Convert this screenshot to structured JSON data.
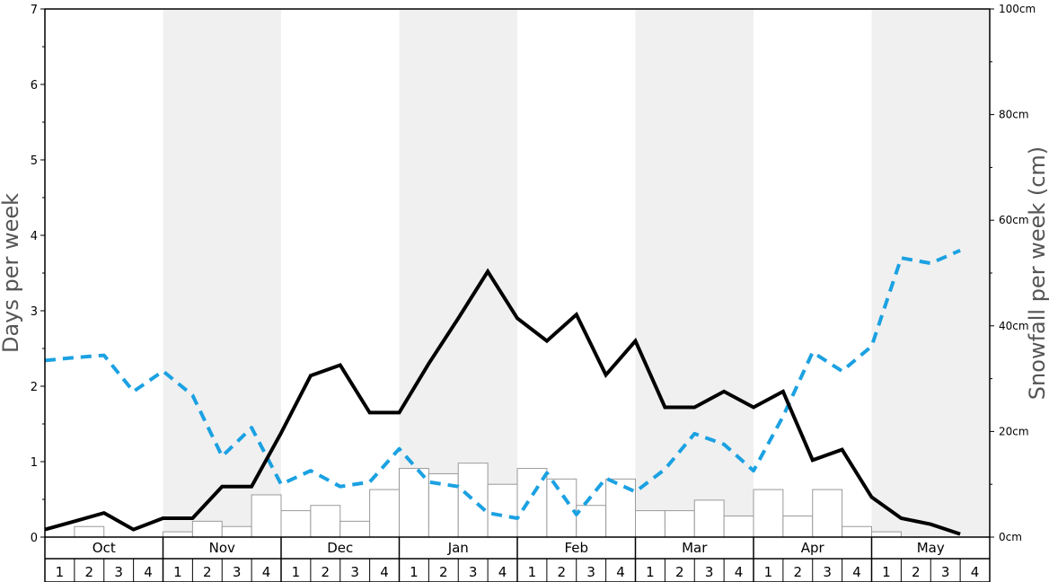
{
  "chart_data": {
    "type": "bar",
    "ylabel": "Days per week",
    "y2label": "Snowfall per week (cm)",
    "ylim": [
      0,
      7
    ],
    "y_ticks": [
      "0",
      "1",
      "2",
      "3",
      "4",
      "5",
      "6",
      "7"
    ],
    "y2lim": [
      0,
      100
    ],
    "y2_ticks": [
      "0cm",
      "20cm",
      "40cm",
      "60cm",
      "80cm",
      "100cm"
    ],
    "months": [
      "Oct",
      "Nov",
      "Dec",
      "Jan",
      "Feb",
      "Mar",
      "Apr",
      "May"
    ],
    "week_labels": [
      "1",
      "2",
      "3",
      "4"
    ],
    "shaded_months": [
      "Nov",
      "Jan",
      "Mar",
      "May"
    ],
    "grid": false,
    "colors": {
      "bars_fill": "#ffffff",
      "bars_stroke": "#9a9a9a",
      "solid_line": "#000000",
      "dashed_line": "#1ba1e2",
      "shade": "#f0f0f0"
    },
    "series": [
      {
        "type": "bar",
        "axis": "right",
        "values": [
          0,
          2,
          0,
          0,
          1,
          3,
          2,
          8,
          5,
          6,
          3,
          9,
          13,
          12,
          14,
          10,
          13,
          11,
          6,
          11,
          5,
          5,
          7,
          4,
          9,
          4,
          9,
          2,
          1,
          0,
          0,
          0
        ]
      },
      {
        "type": "line",
        "style": "solid",
        "axis": "left",
        "values": [
          0.1,
          0.21,
          0.32,
          0.1,
          0.25,
          0.25,
          0.67,
          0.67,
          1.38,
          2.14,
          2.28,
          1.65,
          1.65,
          2.3,
          2.9,
          3.52,
          2.9,
          2.6,
          2.95,
          2.15,
          2.6,
          1.72,
          1.72,
          1.93,
          1.72,
          1.93,
          1.02,
          1.16,
          0.53,
          0.25,
          0.17,
          0.04
        ]
      },
      {
        "type": "line",
        "style": "dashed",
        "axis": "left",
        "values": [
          2.34,
          2.38,
          2.41,
          1.93,
          2.2,
          1.88,
          1.07,
          1.45,
          0.7,
          0.88,
          0.67,
          0.73,
          1.17,
          0.73,
          0.67,
          0.32,
          0.25,
          0.85,
          0.3,
          0.78,
          0.6,
          0.9,
          1.37,
          1.23,
          0.88,
          1.6,
          2.45,
          2.2,
          2.53,
          3.7,
          3.63,
          3.8
        ]
      }
    ]
  }
}
